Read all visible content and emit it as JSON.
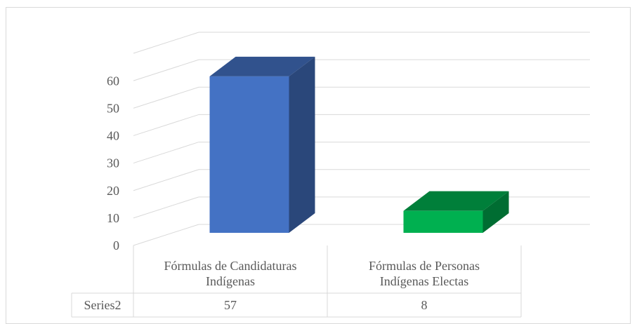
{
  "chart_data": {
    "type": "bar3d",
    "categories": [
      "Fórmulas de Candidaturas Indígenas",
      "Fórmulas de Personas Indígenas Electas"
    ],
    "series": [
      {
        "name": "Series2",
        "colors": [
          "#4472c4",
          "#00b050"
        ],
        "values": [
          57,
          8
        ]
      }
    ],
    "ylim": [
      0,
      70
    ],
    "yticks": [
      0,
      10,
      20,
      30,
      40,
      50,
      60
    ],
    "grid": true,
    "data_table": true
  }
}
